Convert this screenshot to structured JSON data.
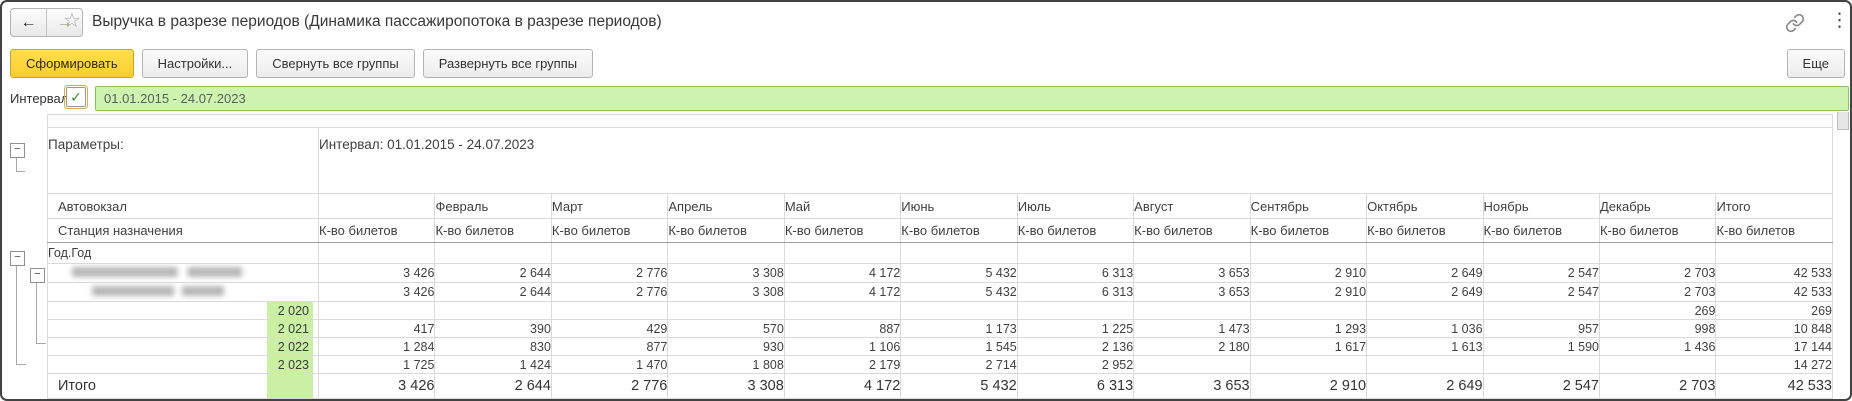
{
  "window": {
    "title": "Выручка в разрезе периодов (Динамика пассажиропотока в разрезе периодов)"
  },
  "icons": {
    "back_arrow": "←",
    "forward_arrow": "→",
    "star": "☆",
    "link": "chain-link",
    "kebab": "⋮",
    "checkmark": "✓",
    "collapse_glyph": "−"
  },
  "toolbar": {
    "generate": "Сформировать",
    "settings": "Настройки...",
    "collapse_all": "Свернуть все группы",
    "expand_all": "Развернуть все группы",
    "more": "Еще"
  },
  "filter": {
    "label": "Интервал:",
    "checked": true,
    "value": "01.01.2015 - 24.07.2023"
  },
  "report": {
    "params_label": "Параметры:",
    "params_value": "Интервал: 01.01.2015 - 24.07.2023",
    "col1_header_top": "Автовокзал",
    "col1_header_bottom": "Станция назначения",
    "measure_label": "К-во билетов",
    "group_row_label": "Год.Год",
    "months": [
      "",
      "Февраль",
      "Март",
      "Апрель",
      "Май",
      "Июнь",
      "Июль",
      "Август",
      "Сентябрь",
      "Октябрь",
      "Ноябрь",
      "Декабрь",
      "Итого"
    ],
    "rows": [
      {
        "redacted": true,
        "label": "",
        "values": [
          "3 426",
          "2 644",
          "2 776",
          "3 308",
          "4 172",
          "5 432",
          "6 313",
          "3 653",
          "2 910",
          "2 649",
          "2 547",
          "2 703",
          "42 533"
        ]
      },
      {
        "redacted": true,
        "label": "",
        "values": [
          "3 426",
          "2 644",
          "2 776",
          "3 308",
          "4 172",
          "5 432",
          "6 313",
          "3 653",
          "2 910",
          "2 649",
          "2 547",
          "2 703",
          "42 533"
        ]
      },
      {
        "redacted": false,
        "label": "2 020",
        "values": [
          "",
          "",
          "",
          "",
          "",
          "",
          "",
          "",
          "",
          "",
          "",
          "269",
          "269"
        ]
      },
      {
        "redacted": false,
        "label": "2 021",
        "values": [
          "417",
          "390",
          "429",
          "570",
          "887",
          "1 173",
          "1 225",
          "1 473",
          "1 293",
          "1 036",
          "957",
          "998",
          "10 848"
        ]
      },
      {
        "redacted": false,
        "label": "2 022",
        "values": [
          "1 284",
          "830",
          "877",
          "930",
          "1 106",
          "1 545",
          "2 136",
          "2 180",
          "1 617",
          "1 613",
          "1 590",
          "1 436",
          "17 144"
        ]
      },
      {
        "redacted": false,
        "label": "2 023",
        "values": [
          "1 725",
          "1 424",
          "1 470",
          "1 808",
          "2 179",
          "2 714",
          "2 952",
          "",
          "",
          "",
          "",
          "",
          "14 272"
        ]
      }
    ],
    "total_row": {
      "label": "Итого",
      "values": [
        "3 426",
        "2 644",
        "2 776",
        "3 308",
        "4 172",
        "5 432",
        "6 313",
        "3 653",
        "2 910",
        "2 649",
        "2 547",
        "2 703",
        "42 533"
      ]
    }
  },
  "colors": {
    "accent_yellow": "#ffd83e",
    "filter_field_bg": "#cdf5b0",
    "filter_field_border": "#8cc152",
    "year_highlight_bg": "#c9f0a3",
    "table_border": "#dadada",
    "table_outer_border": "#9c9c9c"
  }
}
